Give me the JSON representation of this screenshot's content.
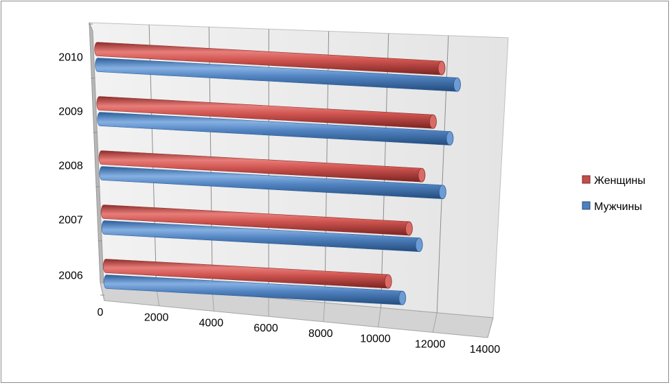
{
  "chart_data": {
    "type": "bar",
    "orientation": "horizontal",
    "style": "3d-cylinder",
    "categories": [
      "2006",
      "2007",
      "2008",
      "2009",
      "2010"
    ],
    "series": [
      {
        "name": "Женщины",
        "color": "#c0504d",
        "values": [
          10450,
          11300,
          11850,
          12350,
          12750
        ]
      },
      {
        "name": "Мужчины",
        "color": "#4f81bd",
        "values": [
          10950,
          11650,
          12600,
          12950,
          13300
        ]
      }
    ],
    "xlim": [
      0,
      14000
    ],
    "x_ticks": [
      "0",
      "2000",
      "4000",
      "6000",
      "8000",
      "10000",
      "12000",
      "14000"
    ],
    "grid": true,
    "legend_position": "right"
  }
}
